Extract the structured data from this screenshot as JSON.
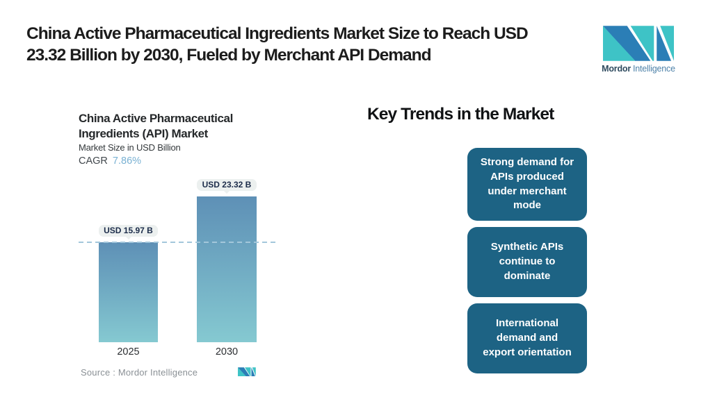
{
  "colors": {
    "logo_teal": "#3EC3C6",
    "logo_blue": "#2B7EB6",
    "card_background": "#1D6384",
    "bar_gradient_top": "#5E90B6",
    "bar_gradient_bottom": "#85C9D1",
    "dashed_line": "#A3C7DB",
    "pill_background": "#ECF0EF",
    "pill_text": "#1C2C4A",
    "cagr_value_color": "#79B1D3"
  },
  "header": {
    "title": "China Active Pharmaceutical Ingredients Market Size to Reach USD\n23.32 Billion by 2030, Fueled by Merchant API Demand",
    "brand": {
      "bold": "Mordor",
      "light": "Intelligence"
    }
  },
  "chart": {
    "title": "China Active Pharmaceutical\nIngredients (API) Market",
    "subtitle": "Market Size in USD Billion",
    "cagr_label": "CAGR",
    "cagr_value": "7.86%",
    "source_label": "Source :  Mordor Intelligence"
  },
  "chart_data": {
    "type": "bar",
    "categories": [
      "2025",
      "2030"
    ],
    "values": [
      15.97,
      23.32
    ],
    "bar_labels": [
      "USD 15.97 B",
      "USD 23.32 B"
    ],
    "title": "China Active Pharmaceutical Ingredients (API) Market",
    "xlabel": "",
    "ylabel": "Market Size in USD Billion",
    "ylim": [
      0,
      25
    ],
    "grid": false,
    "legend": "none",
    "reference_line": {
      "value": 15.97,
      "style": "dashed"
    }
  },
  "trends": {
    "heading": "Key Trends in the Market",
    "cards": [
      {
        "text": "Strong demand for\nAPIs produced\nunder merchant\nmode"
      },
      {
        "text": "Synthetic APIs\ncontinue to\ndominate"
      },
      {
        "text": "International\ndemand and\nexport orientation"
      }
    ]
  }
}
